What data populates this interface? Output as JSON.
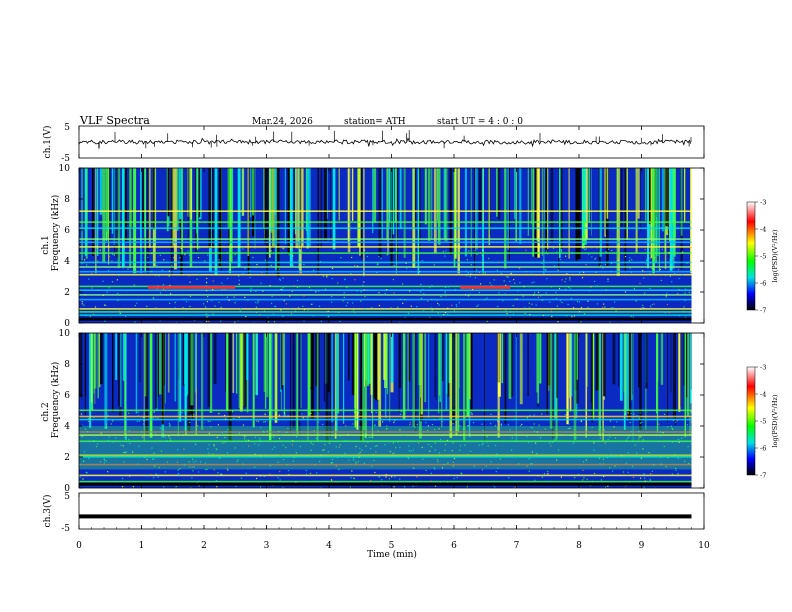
{
  "chart_data": {
    "type": "heatmap",
    "title": "VLF  Spectra",
    "header": {
      "date": "Mar.24, 2026",
      "station": "station= ATH",
      "start": "start  UT  =   4  : 0   : 0"
    },
    "x_axis": {
      "label": "Time  (min)",
      "range": [
        0,
        10
      ],
      "ticks": [
        0,
        1,
        2,
        3,
        4,
        5,
        6,
        7,
        8,
        9,
        10
      ]
    },
    "waveform_top": {
      "ylabel": "ch.1(V)",
      "range": [
        -5,
        5
      ],
      "tick_labels": [
        "5",
        "-5"
      ],
      "data_end_min": 9.8
    },
    "spectrogram_ch1": {
      "ylabel": "ch.1\nFrequency  (kHz)",
      "range": [
        0,
        10
      ],
      "ticks": [
        0,
        2,
        4,
        6,
        8,
        10
      ],
      "band_kHz": [
        0.5,
        0.7,
        0.9,
        1.5,
        1.8,
        2.1,
        2.35,
        3.1,
        3.3,
        3.6,
        3.9,
        4.5,
        4.9,
        5.2,
        5.4,
        6.1,
        6.5,
        7.2
      ],
      "emission_segments": [
        {
          "f_kHz": 2.3,
          "t0": 1.1,
          "t1": 2.5
        },
        {
          "f_kHz": 2.3,
          "t0": 6.1,
          "t1": 6.9
        }
      ]
    },
    "spectrogram_ch2": {
      "ylabel": "ch.2\nFrequency  (kHz)",
      "range": [
        0,
        10
      ],
      "ticks": [
        0,
        2,
        4,
        6,
        8,
        10
      ],
      "band_kHz": [
        0.4,
        0.8,
        1.5,
        2.0,
        2.1,
        3.0,
        3.4,
        3.6,
        4.4,
        4.6,
        5.0
      ]
    },
    "waveform_bottom": {
      "ylabel": "ch.3(V)",
      "range": [
        -5,
        5
      ],
      "tick_labels": [
        "5",
        "-5"
      ],
      "level_V": -1.5
    },
    "colorbar": {
      "label": "log(PSD)(V²/Hz)",
      "range": [
        -7,
        -3
      ],
      "ticks": [
        -3,
        -4,
        -5,
        -6,
        -7
      ],
      "tick_labels": [
        "-3",
        "-4",
        "-5",
        "-6",
        "-7"
      ],
      "colors": [
        "#ffffff",
        "#ff0000",
        "#ffff00",
        "#00ff00",
        "#00e0e0",
        "#0000ff",
        "#000000"
      ]
    }
  }
}
